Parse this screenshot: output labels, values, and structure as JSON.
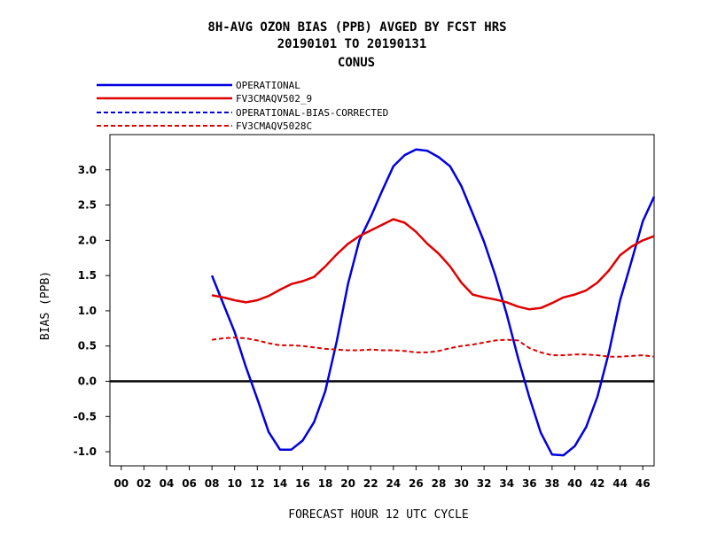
{
  "chart_data": {
    "type": "line",
    "title_lines": [
      "8H-AVG OZON BIAS (PPB)  AVGED BY FCST HRS",
      "20190101 TO 20190131",
      "CONUS"
    ],
    "xlabel": "FORECAST HOUR  12 UTC CYCLE",
    "ylabel": "BIAS (PPB)",
    "xlim": [
      -1,
      47
    ],
    "ylim": [
      -1.2,
      3.5
    ],
    "xticks": [
      "00",
      "02",
      "04",
      "06",
      "08",
      "10",
      "12",
      "14",
      "16",
      "18",
      "20",
      "22",
      "24",
      "26",
      "28",
      "30",
      "32",
      "34",
      "36",
      "38",
      "40",
      "42",
      "44",
      "46"
    ],
    "yticks": [
      "-1.0",
      "-0.5",
      "0.0",
      "0.5",
      "1.0",
      "1.5",
      "2.0",
      "2.5",
      "3.0"
    ],
    "zero_line": true,
    "legend_position": "top-left, above plot",
    "series": [
      {
        "name": "OPERATIONAL",
        "color": "#0000e0",
        "style": "solid",
        "x": [
          8,
          9,
          10,
          11,
          12,
          13,
          14,
          15,
          16,
          17,
          18,
          19,
          20,
          21,
          22,
          23,
          24,
          25,
          26,
          27,
          28,
          29,
          30,
          31,
          32,
          33,
          34,
          35,
          36,
          37,
          38,
          39,
          40,
          41,
          42,
          43,
          44,
          45,
          46,
          47
        ],
        "y": [
          1.5,
          1.1,
          0.7,
          0.2,
          -0.25,
          -0.72,
          -0.97,
          -0.97,
          -0.84,
          -0.58,
          -0.14,
          0.56,
          1.38,
          2.0,
          2.33,
          2.7,
          3.05,
          3.21,
          3.29,
          3.27,
          3.18,
          3.05,
          2.77,
          2.38,
          1.98,
          1.5,
          0.95,
          0.33,
          -0.23,
          -0.73,
          -1.04,
          -1.05,
          -0.92,
          -0.65,
          -0.22,
          0.4,
          1.15,
          1.7,
          2.27,
          2.62
        ]
      },
      {
        "name": "FV3CMAQV502_9",
        "color": "#e00000",
        "style": "solid",
        "x": [
          8,
          9,
          10,
          11,
          12,
          13,
          14,
          15,
          16,
          17,
          18,
          19,
          20,
          21,
          22,
          23,
          24,
          25,
          26,
          27,
          28,
          29,
          30,
          31,
          32,
          33,
          34,
          35,
          36,
          37,
          38,
          39,
          40,
          41,
          42,
          43,
          44,
          45,
          46,
          47
        ],
        "y": [
          1.22,
          1.19,
          1.15,
          1.12,
          1.15,
          1.21,
          1.3,
          1.38,
          1.42,
          1.48,
          1.63,
          1.8,
          1.95,
          2.06,
          2.14,
          2.22,
          2.3,
          2.25,
          2.12,
          1.95,
          1.81,
          1.63,
          1.4,
          1.23,
          1.19,
          1.16,
          1.12,
          1.06,
          1.02,
          1.04,
          1.11,
          1.19,
          1.23,
          1.29,
          1.4,
          1.57,
          1.79,
          1.91,
          2.0,
          2.06
        ]
      },
      {
        "name": "OPERATIONAL-BIAS-CORRECTED",
        "color": "#0000e0",
        "style": "dashed",
        "x": [],
        "y": []
      },
      {
        "name": "FV3CMAQV5028C",
        "color": "#e00000",
        "style": "dashed",
        "x": [
          8,
          9,
          10,
          11,
          12,
          13,
          14,
          15,
          16,
          17,
          18,
          19,
          20,
          21,
          22,
          23,
          24,
          25,
          26,
          27,
          28,
          29,
          30,
          31,
          32,
          33,
          34,
          35,
          36,
          37,
          38,
          39,
          40,
          41,
          42,
          43,
          44,
          45,
          46,
          47
        ],
        "y": [
          0.59,
          0.61,
          0.62,
          0.61,
          0.58,
          0.54,
          0.51,
          0.51,
          0.5,
          0.48,
          0.46,
          0.45,
          0.44,
          0.44,
          0.45,
          0.44,
          0.44,
          0.43,
          0.41,
          0.41,
          0.43,
          0.47,
          0.5,
          0.52,
          0.55,
          0.58,
          0.59,
          0.58,
          0.47,
          0.41,
          0.37,
          0.37,
          0.38,
          0.38,
          0.37,
          0.35,
          0.35,
          0.36,
          0.37,
          0.35
        ]
      }
    ]
  }
}
